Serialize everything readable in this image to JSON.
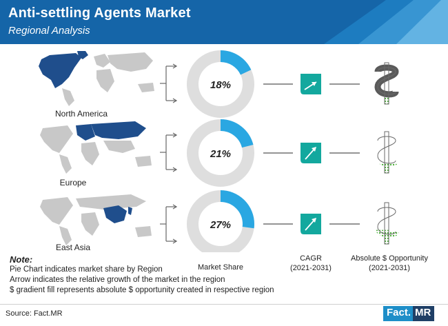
{
  "header": {
    "title": "Anti-settling Agents Market",
    "subtitle": "Regional Analysis"
  },
  "colors": {
    "header_blue": "#1565a8",
    "header_light": "#4fa9dc",
    "donut_fill": "#2aa7e2",
    "donut_bg": "#dedede",
    "cagr_teal": "#13a89e",
    "dollar_green": "#4cae3a",
    "map_highlight": "#1f4e8c",
    "map_base": "#c8c8c8"
  },
  "chart_data": {
    "type": "pie",
    "title": "Anti-settling Agents Market",
    "subtitle": "Regional Analysis",
    "series": [
      {
        "region": "North America",
        "market_share": 18,
        "cagr_arrow": "moderate",
        "opportunity_fill": 0.16
      },
      {
        "region": "Europe",
        "market_share": 21,
        "cagr_arrow": "high",
        "opportunity_fill": 0.24
      },
      {
        "region": "East Asia",
        "market_share": 27,
        "cagr_arrow": "high",
        "opportunity_fill": 0.34
      }
    ],
    "share_labels": [
      "18%",
      "21%",
      "27%"
    ],
    "column_labels": {
      "market_share": "Market Share",
      "cagr": "CAGR",
      "cagr_period": "(2021-2031)",
      "opportunity": "Absolute $ Opportunity",
      "opportunity_period": "(2021-2031)"
    }
  },
  "notes": {
    "heading": "Note:",
    "lines": [
      "Pie Chart indicates market share by Region",
      "Arrow indicates the relative growth of the market in the region",
      "$ gradient fill represents absolute $ opportunity created in respective region"
    ]
  },
  "footer": {
    "source": "Source: Fact.MR",
    "logo_part1": "Fact.",
    "logo_part2": "MR"
  }
}
